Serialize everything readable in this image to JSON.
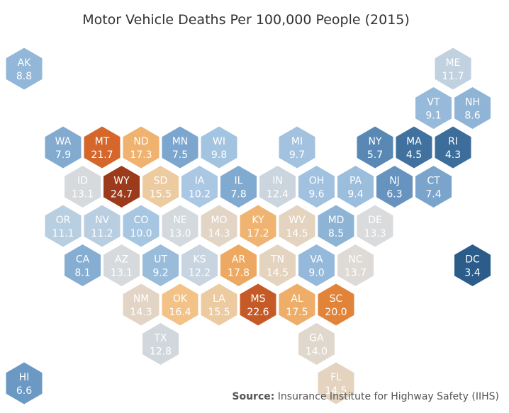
{
  "chart_data": {
    "type": "hex-tile-map",
    "title": "Motor Vehicle Deaths Per 100,000 People (2015)",
    "source_label": "Source:",
    "source_text": "Insurance Institute for Highway Safety (IIHS)",
    "color_scale": {
      "low_color": "#1f4e79",
      "mid_color": "#dcdcdc",
      "high_color": "#9c3b1b",
      "mid_value": 13.5,
      "min_value": 3.4,
      "max_value": 24.7
    },
    "states": [
      {
        "abbr": "AK",
        "value": "8.8",
        "row": 0,
        "col": 0
      },
      {
        "abbr": "ME",
        "value": "11.7",
        "row": 0,
        "col": 11
      },
      {
        "abbr": "VT",
        "value": "9.1",
        "row": 1,
        "col": 10
      },
      {
        "abbr": "NH",
        "value": "8.6",
        "row": 1,
        "col": 11
      },
      {
        "abbr": "WA",
        "value": "7.9",
        "row": 2,
        "col": 1
      },
      {
        "abbr": "MT",
        "value": "21.7",
        "row": 2,
        "col": 2
      },
      {
        "abbr": "ND",
        "value": "17.3",
        "row": 2,
        "col": 3
      },
      {
        "abbr": "MN",
        "value": "7.5",
        "row": 2,
        "col": 4
      },
      {
        "abbr": "WI",
        "value": "9.8",
        "row": 2,
        "col": 5
      },
      {
        "abbr": "MI",
        "value": "9.7",
        "row": 2,
        "col": 7
      },
      {
        "abbr": "NY",
        "value": "5.7",
        "row": 2,
        "col": 9
      },
      {
        "abbr": "MA",
        "value": "4.5",
        "row": 2,
        "col": 10
      },
      {
        "abbr": "RI",
        "value": "4.3",
        "row": 2,
        "col": 11
      },
      {
        "abbr": "ID",
        "value": "13.1",
        "row": 3,
        "col": 1
      },
      {
        "abbr": "WY",
        "value": "24.7",
        "row": 3,
        "col": 2
      },
      {
        "abbr": "SD",
        "value": "15.5",
        "row": 3,
        "col": 3
      },
      {
        "abbr": "IA",
        "value": "10.2",
        "row": 3,
        "col": 4
      },
      {
        "abbr": "IL",
        "value": "7.8",
        "row": 3,
        "col": 5
      },
      {
        "abbr": "IN",
        "value": "12.4",
        "row": 3,
        "col": 6
      },
      {
        "abbr": "OH",
        "value": "9.6",
        "row": 3,
        "col": 7
      },
      {
        "abbr": "PA",
        "value": "9.4",
        "row": 3,
        "col": 8
      },
      {
        "abbr": "NJ",
        "value": "6.3",
        "row": 3,
        "col": 9
      },
      {
        "abbr": "CT",
        "value": "7.4",
        "row": 3,
        "col": 10
      },
      {
        "abbr": "OR",
        "value": "11.1",
        "row": 4,
        "col": 1
      },
      {
        "abbr": "NV",
        "value": "11.2",
        "row": 4,
        "col": 2
      },
      {
        "abbr": "CO",
        "value": "10.0",
        "row": 4,
        "col": 3
      },
      {
        "abbr": "NE",
        "value": "13.0",
        "row": 4,
        "col": 4
      },
      {
        "abbr": "MO",
        "value": "14.3",
        "row": 4,
        "col": 5
      },
      {
        "abbr": "KY",
        "value": "17.2",
        "row": 4,
        "col": 6
      },
      {
        "abbr": "WV",
        "value": "14.5",
        "row": 4,
        "col": 7
      },
      {
        "abbr": "MD",
        "value": "8.5",
        "row": 4,
        "col": 8
      },
      {
        "abbr": "DE",
        "value": "13.3",
        "row": 4,
        "col": 9
      },
      {
        "abbr": "CA",
        "value": "8.1",
        "row": 5,
        "col": 1
      },
      {
        "abbr": "AZ",
        "value": "13.1",
        "row": 5,
        "col": 2
      },
      {
        "abbr": "UT",
        "value": "9.2",
        "row": 5,
        "col": 3
      },
      {
        "abbr": "KS",
        "value": "12.2",
        "row": 5,
        "col": 4
      },
      {
        "abbr": "AR",
        "value": "17.8",
        "row": 5,
        "col": 5
      },
      {
        "abbr": "TN",
        "value": "14.5",
        "row": 5,
        "col": 6
      },
      {
        "abbr": "VA",
        "value": "9.0",
        "row": 5,
        "col": 7
      },
      {
        "abbr": "NC",
        "value": "13.7",
        "row": 5,
        "col": 8
      },
      {
        "abbr": "DC",
        "value": "3.4",
        "row": 5,
        "col": 11
      },
      {
        "abbr": "NM",
        "value": "14.3",
        "row": 6,
        "col": 3
      },
      {
        "abbr": "OK",
        "value": "16.4",
        "row": 6,
        "col": 4
      },
      {
        "abbr": "LA",
        "value": "15.5",
        "row": 6,
        "col": 5
      },
      {
        "abbr": "MS",
        "value": "22.6",
        "row": 6,
        "col": 6
      },
      {
        "abbr": "AL",
        "value": "17.5",
        "row": 6,
        "col": 7
      },
      {
        "abbr": "SC",
        "value": "20.0",
        "row": 6,
        "col": 8
      },
      {
        "abbr": "TX",
        "value": "12.8",
        "row": 7,
        "col": 3
      },
      {
        "abbr": "GA",
        "value": "14.0",
        "row": 7,
        "col": 7
      },
      {
        "abbr": "HI",
        "value": "6.6",
        "row": 8,
        "col": 0
      },
      {
        "abbr": "FL",
        "value": "14.5",
        "row": 8,
        "col": 8
      }
    ]
  }
}
